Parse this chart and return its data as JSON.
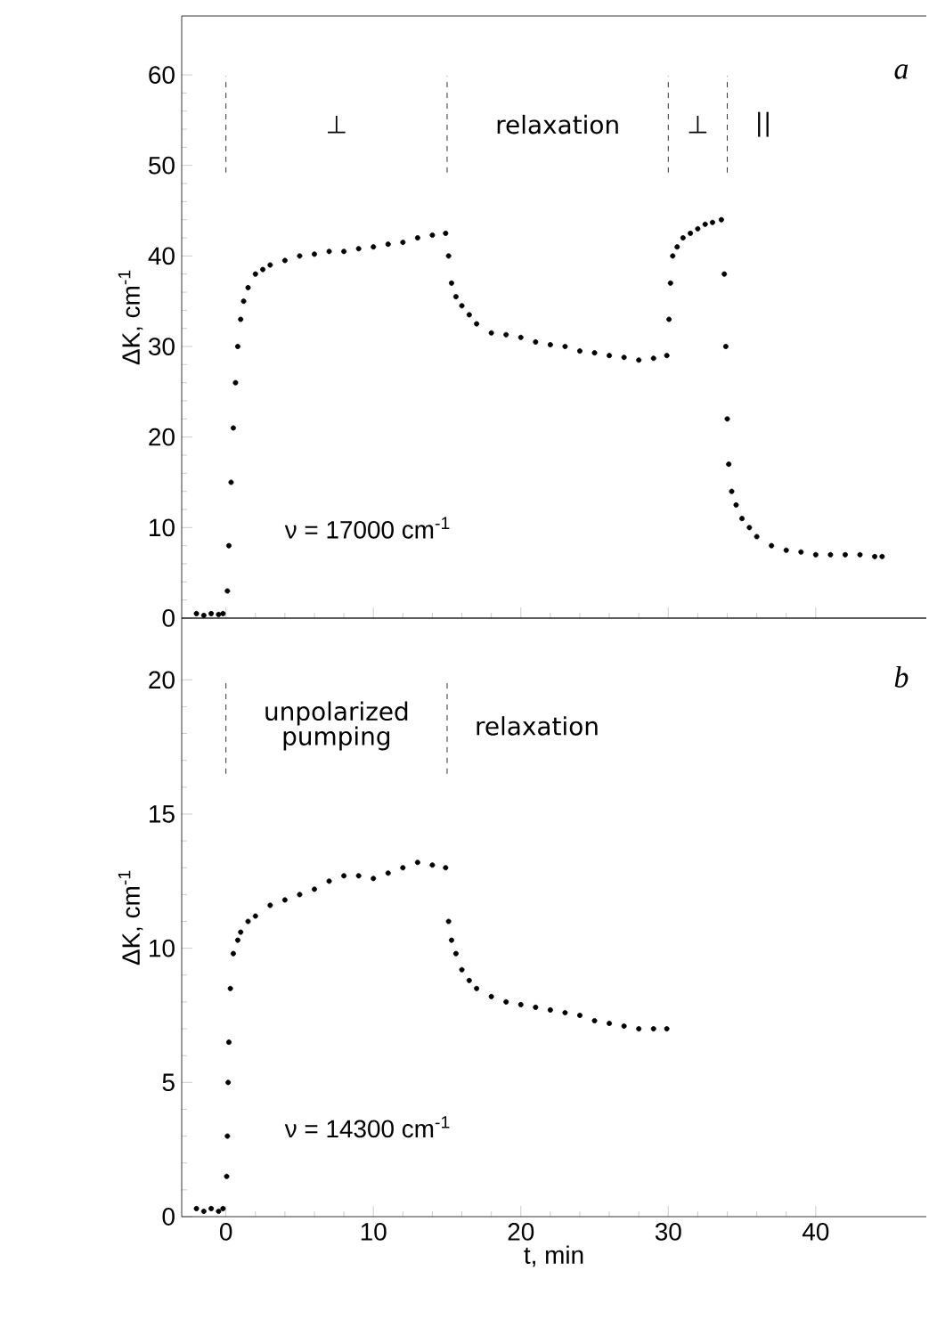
{
  "chart_data": [
    {
      "type": "scatter",
      "ylabel": "ΔK, cm$^{-1}$",
      "xlim": [
        -3,
        47.5
      ],
      "ylim": [
        0,
        66.5
      ],
      "xticks": [
        0,
        10,
        20,
        30,
        40
      ],
      "yticks": [
        0,
        10,
        20,
        30,
        40,
        50,
        60
      ],
      "tick_labels": "y",
      "annotations": [
        "a",
        "ν = 17000 cm$^{-1}$",
        "⊥",
        "relaxation",
        "⊥",
        "||"
      ],
      "ref_lines": [
        {
          "axis": "x",
          "value": 0,
          "line_style": "dashed"
        },
        {
          "axis": "x",
          "value": 15,
          "line_style": "dashed"
        },
        {
          "axis": "x",
          "value": 30,
          "line_style": "dashed"
        },
        {
          "axis": "x",
          "value": 34,
          "line_style": "dashed"
        }
      ],
      "series": [
        {
          "color": "#000000",
          "x": [
            -2,
            -1.5,
            -1,
            -0.5,
            -0.2,
            0.1,
            0.2,
            0.35,
            0.5,
            0.65,
            0.8,
            1,
            1.2,
            1.5,
            2,
            2.5,
            3,
            4,
            5,
            6,
            7,
            8,
            9,
            10,
            11,
            12,
            13,
            14,
            14.9,
            15.1,
            15.3,
            15.6,
            16,
            16.5,
            17,
            18,
            19,
            20,
            21,
            22,
            23,
            24,
            25,
            26,
            27,
            28,
            29,
            29.9,
            30.05,
            30.15,
            30.3,
            30.6,
            31,
            31.5,
            32,
            32.5,
            33,
            33.6,
            33.8,
            33.9,
            34,
            34.1,
            34.3,
            34.6,
            35,
            35.5,
            36,
            37,
            38,
            39,
            40,
            41,
            42,
            43,
            44,
            44.5
          ],
          "values": [
            0.5,
            0.3,
            0.5,
            0.4,
            0.5,
            3,
            8,
            15,
            21,
            26,
            30,
            33,
            35,
            36.5,
            38,
            38.5,
            39,
            39.5,
            40,
            40.2,
            40.5,
            40.5,
            40.8,
            41,
            41.3,
            41.5,
            42,
            42.3,
            42.5,
            40,
            37,
            35.5,
            34.5,
            33.5,
            32.5,
            31.5,
            31.3,
            31,
            30.5,
            30.2,
            30,
            29.5,
            29.3,
            29,
            28.8,
            28.5,
            28.7,
            29,
            33,
            37,
            40,
            41,
            42,
            42.5,
            43,
            43.5,
            43.7,
            44,
            38,
            30,
            22,
            17,
            14,
            12.5,
            11,
            10,
            9,
            8,
            7.5,
            7.3,
            7,
            7,
            7,
            7,
            6.8,
            6.8
          ]
        }
      ]
    },
    {
      "type": "scatter",
      "xlabel": "t, min",
      "ylabel": "ΔK, cm$^{-1}$",
      "xlim": [
        -3,
        47.5
      ],
      "ylim": [
        0,
        22.3
      ],
      "xticks": [
        0,
        10,
        20,
        30,
        40
      ],
      "yticks": [
        0,
        5,
        10,
        15,
        20
      ],
      "annotations": [
        "b",
        "ν = 14300 cm$^{-1}$",
        "unpolarized pumping",
        "relaxation"
      ],
      "ref_lines": [
        {
          "axis": "x",
          "value": 0,
          "line_style": "dashed"
        },
        {
          "axis": "x",
          "value": 15,
          "line_style": "dashed"
        }
      ],
      "series": [
        {
          "color": "#000000",
          "x": [
            -2,
            -1.5,
            -1,
            -0.5,
            -0.2,
            0.05,
            0.1,
            0.15,
            0.2,
            0.3,
            0.5,
            0.8,
            1,
            1.5,
            2,
            3,
            4,
            5,
            6,
            7,
            8,
            9,
            10,
            11,
            12,
            13,
            14,
            14.9,
            15.1,
            15.3,
            15.6,
            16,
            16.5,
            17,
            18,
            19,
            20,
            21,
            22,
            23,
            24,
            25,
            26,
            27,
            28,
            29,
            29.9
          ],
          "values": [
            0.3,
            0.2,
            0.3,
            0.2,
            0.3,
            1.5,
            3,
            5,
            6.5,
            8.5,
            9.8,
            10.3,
            10.6,
            11,
            11.2,
            11.6,
            11.8,
            12,
            12.2,
            12.5,
            12.7,
            12.7,
            12.6,
            12.8,
            13,
            13.2,
            13.1,
            13,
            11,
            10.3,
            9.8,
            9.2,
            8.8,
            8.5,
            8.2,
            8,
            7.9,
            7.8,
            7.7,
            7.6,
            7.5,
            7.3,
            7.2,
            7.1,
            7,
            7,
            7
          ]
        }
      ]
    }
  ]
}
